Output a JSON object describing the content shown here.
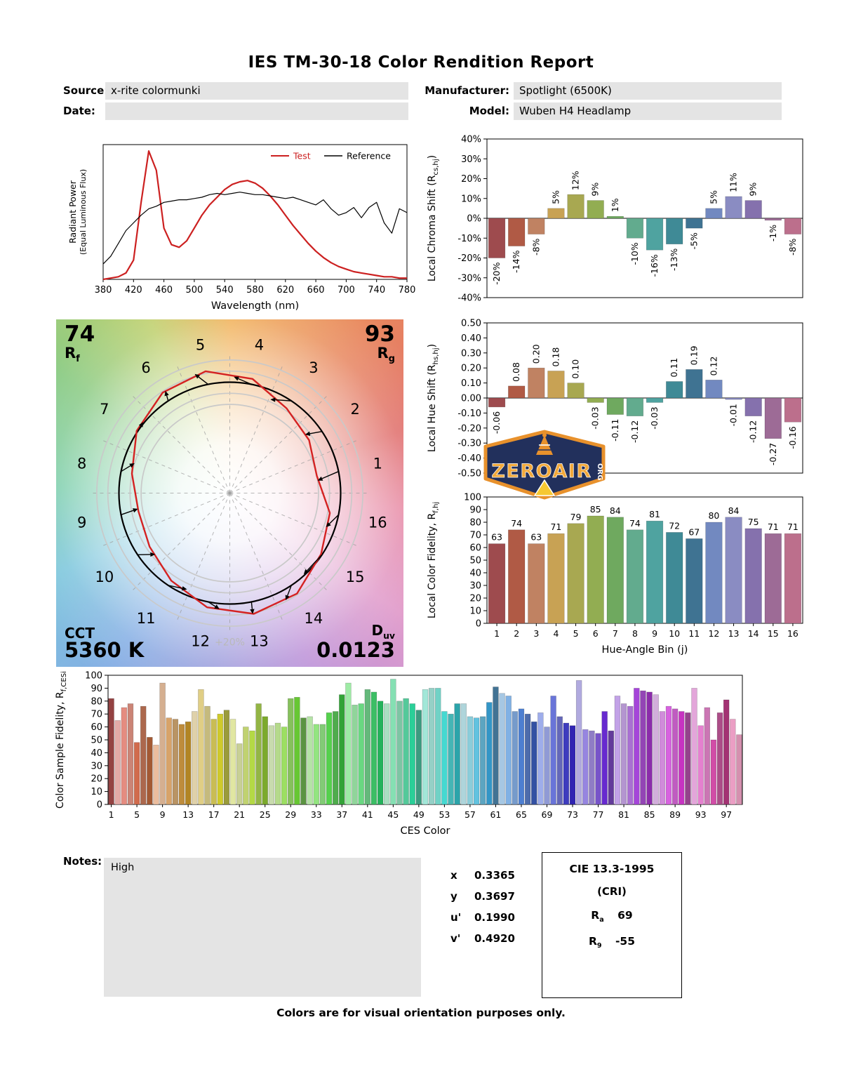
{
  "title": "IES TM-30-18 Color Rendition Report",
  "meta": {
    "source_label": "Source:",
    "source_value": "x-rite colormunki",
    "manufacturer_label": "Manufacturer:",
    "manufacturer_value": "Spotlight (6500K)",
    "date_label": "Date:",
    "date_value": "",
    "model_label": "Model:",
    "model_value": "Wuben H4 Headlamp"
  },
  "colors": {
    "test_curve": "#cc2020",
    "reference_curve": "#000000",
    "field_background": "#e4e4e4",
    "circle_gray": "#c9c9c9",
    "scale_label_gray": "#b9b9b9",
    "logo_navy": "#22305c",
    "logo_orange": "#e8912c",
    "logo_yellow": "#f6c832",
    "hue_bin_colors": [
      "#9e4b4e",
      "#b05a45",
      "#c08262",
      "#c8a254",
      "#a8a851",
      "#92ad52",
      "#6fa95f",
      "#62ab8e",
      "#4fa3a0",
      "#3f8a96",
      "#3f7392",
      "#7289c0",
      "#8a8cc2",
      "#8571ad",
      "#9d6b96",
      "#bc6f8c"
    ]
  },
  "chart_data": [
    {
      "id": "spd",
      "type": "line",
      "title": "Spectral Power Distribution",
      "xlabel": "Wavelength (nm)",
      "ylabel_lines": [
        "Radiant Power",
        "(Equal Luminous Flux)"
      ],
      "xlim": [
        380,
        780
      ],
      "xticks": [
        380,
        420,
        460,
        500,
        540,
        580,
        620,
        660,
        700,
        740,
        780
      ],
      "ylim": [
        0,
        1.05
      ],
      "x_step": 10,
      "legend": [
        {
          "label": "Test",
          "color": "#cc2020"
        },
        {
          "label": "Reference",
          "color": "#000000"
        }
      ],
      "series": [
        {
          "name": "Test",
          "color": "#cc2020",
          "width": 2.2,
          "y": [
            0,
            0.01,
            0.02,
            0.05,
            0.15,
            0.6,
            1,
            0.85,
            0.4,
            0.27,
            0.25,
            0.3,
            0.4,
            0.5,
            0.58,
            0.64,
            0.7,
            0.74,
            0.76,
            0.77,
            0.75,
            0.71,
            0.65,
            0.58,
            0.5,
            0.42,
            0.35,
            0.28,
            0.22,
            0.17,
            0.13,
            0.1,
            0.08,
            0.06,
            0.05,
            0.04,
            0.03,
            0.02,
            0.02,
            0.01,
            0.01
          ]
        },
        {
          "name": "Reference",
          "color": "#000000",
          "width": 1.2,
          "y": [
            0.12,
            0.18,
            0.28,
            0.38,
            0.44,
            0.5,
            0.55,
            0.57,
            0.6,
            0.61,
            0.62,
            0.62,
            0.63,
            0.64,
            0.66,
            0.67,
            0.66,
            0.67,
            0.68,
            0.67,
            0.66,
            0.66,
            0.65,
            0.64,
            0.63,
            0.64,
            0.62,
            0.6,
            0.58,
            0.62,
            0.55,
            0.5,
            0.52,
            0.56,
            0.48,
            0.56,
            0.6,
            0.44,
            0.36,
            0.55,
            0.52
          ]
        }
      ]
    },
    {
      "id": "chroma",
      "type": "bar",
      "ylabel_parts": [
        {
          "t": "Local Chroma Shift (R"
        },
        {
          "t": "cs,hj",
          "sub": true
        },
        {
          "t": ")"
        }
      ],
      "ylim": [
        -40,
        40
      ],
      "ytick_labels": [
        "40%",
        "30%",
        "20%",
        "10%",
        "0%",
        "-10%",
        "-20%",
        "-30%",
        "-40%"
      ],
      "categories": [
        1,
        2,
        3,
        4,
        5,
        6,
        7,
        8,
        9,
        10,
        11,
        12,
        13,
        14,
        15,
        16
      ],
      "values": [
        -20,
        -14,
        -8,
        5,
        12,
        9,
        1,
        -10,
        -16,
        -13,
        -5,
        5,
        11,
        9,
        -1,
        -8
      ],
      "bar_labels": [
        "-20%",
        "-14%",
        "-8%",
        "5%",
        "12%",
        "9%",
        "1%",
        "-10%",
        "-16%",
        "-13%",
        "-5%",
        "5%",
        "11%",
        "9%",
        "-1%",
        "-8%"
      ],
      "label_style": "rotated"
    },
    {
      "id": "hue",
      "type": "bar",
      "ylabel_parts": [
        {
          "t": "Local Hue Shift (R"
        },
        {
          "t": "hs,hj",
          "sub": true
        },
        {
          "t": ")"
        }
      ],
      "ylim": [
        -0.5,
        0.5
      ],
      "ytick_labels": [
        "0.50",
        "0.40",
        "0.30",
        "0.20",
        "0.10",
        "0.00",
        "-0.10",
        "-0.20",
        "-0.30",
        "-0.40",
        "-0.50"
      ],
      "categories": [
        1,
        2,
        3,
        4,
        5,
        6,
        7,
        8,
        9,
        10,
        11,
        12,
        13,
        14,
        15,
        16
      ],
      "values": [
        -0.06,
        0.08,
        0.2,
        0.18,
        0.1,
        -0.03,
        -0.11,
        -0.12,
        -0.03,
        0.11,
        0.19,
        0.12,
        -0.01,
        -0.12,
        -0.27,
        -0.16
      ],
      "bar_labels": [
        "-0.06",
        "0.08",
        "0.20",
        "0.18",
        "0.10",
        "-0.03",
        "-0.11",
        "-0.12",
        "-0.03",
        "0.11",
        "0.19",
        "0.12",
        "-0.01",
        "-0.12",
        "-0.27",
        "-0.16"
      ],
      "label_style": "rotated"
    },
    {
      "id": "localfid",
      "type": "bar",
      "xlabel": "Hue-Angle Bin (j)",
      "ylabel_parts": [
        {
          "t": "Local Color Fidelity, R"
        },
        {
          "t": "f,hj",
          "sub": true
        }
      ],
      "ylim": [
        0,
        100
      ],
      "ytick_labels": [
        "100",
        "90",
        "80",
        "70",
        "60",
        "50",
        "40",
        "30",
        "20",
        "10",
        "0"
      ],
      "xtick_labels": [
        "1",
        "2",
        "3",
        "4",
        "5",
        "6",
        "7",
        "8",
        "9",
        "10",
        "11",
        "12",
        "13",
        "14",
        "15",
        "16"
      ],
      "xtick_every": 1,
      "categories": [
        1,
        2,
        3,
        4,
        5,
        6,
        7,
        8,
        9,
        10,
        11,
        12,
        13,
        14,
        15,
        16
      ],
      "values": [
        63,
        74,
        63,
        71,
        79,
        85,
        84,
        74,
        81,
        72,
        67,
        80,
        84,
        75,
        71,
        71
      ],
      "bar_labels": [
        "63",
        "74",
        "63",
        "71",
        "79",
        "85",
        "84",
        "74",
        "81",
        "72",
        "67",
        "80",
        "84",
        "75",
        "71",
        "71"
      ],
      "label_style": "top"
    },
    {
      "id": "ces",
      "type": "bar",
      "xlabel": "CES Color",
      "ylabel_parts": [
        {
          "t": "Color Sample Fidelity, R"
        },
        {
          "t": "f,CESi",
          "sub": true
        }
      ],
      "ylim": [
        0,
        100
      ],
      "ytick_labels": [
        "100",
        "90",
        "80",
        "70",
        "60",
        "50",
        "40",
        "30",
        "20",
        "10",
        "0"
      ],
      "xtick_labels": [
        "1",
        "5",
        "9",
        "13",
        "17",
        "21",
        "25",
        "29",
        "33",
        "37",
        "41",
        "45",
        "49",
        "53",
        "57",
        "61",
        "65",
        "69",
        "73",
        "77",
        "81",
        "85",
        "89",
        "93",
        "97"
      ],
      "xtick_every": 4,
      "values": [
        82,
        65,
        75,
        78,
        48,
        76,
        52,
        46,
        94,
        67,
        66,
        62,
        64,
        72,
        89,
        76,
        66,
        70,
        73,
        66,
        47,
        60,
        57,
        78,
        68,
        61,
        63,
        60,
        82,
        83,
        67,
        68,
        62,
        62,
        71,
        72,
        85,
        94,
        77,
        78,
        89,
        87,
        80,
        78,
        97,
        80,
        82,
        78,
        73,
        89,
        90,
        90,
        72,
        70,
        78,
        78,
        68,
        67,
        68,
        79,
        91,
        86,
        84,
        72,
        74,
        70,
        64,
        71,
        60,
        84,
        68,
        63,
        61,
        96,
        58,
        57,
        55,
        72,
        57,
        84,
        78,
        76,
        90,
        88,
        87,
        85,
        72,
        76,
        74,
        72,
        71,
        90,
        61,
        75,
        50,
        71,
        81,
        66,
        54
      ],
      "label_style": "none"
    }
  ],
  "cvg": {
    "rf_value": "74",
    "rf_symbol": "R",
    "rf_sub": "f",
    "rg_value": "93",
    "rg_symbol": "R",
    "rg_sub": "g",
    "cct_label": "CCT",
    "cct_value": "5360 K",
    "duv_symbol": "D",
    "duv_sub": "uv",
    "duv_value": "0.0123",
    "scale_label": "+20%",
    "bin_labels": [
      "1",
      "2",
      "3",
      "4",
      "5",
      "6",
      "7",
      "8",
      "9",
      "10",
      "11",
      "12",
      "13",
      "14",
      "15",
      "16"
    ]
  },
  "logo": {
    "text": "ZEROAIR",
    "suffix": "ORG"
  },
  "notes": {
    "label": "Notes:",
    "text": "High"
  },
  "chromaticity": {
    "rows": [
      {
        "label": "x",
        "value": "0.3365"
      },
      {
        "label": "y",
        "value": "0.3697"
      },
      {
        "label": "u'",
        "value": "0.1990"
      },
      {
        "label": "v'",
        "value": "0.4920"
      }
    ]
  },
  "cri": {
    "title": "CIE 13.3-1995",
    "subtitle": "(CRI)",
    "ra_symbol": "R",
    "ra_sub": "a",
    "ra_value": "69",
    "r9_symbol": "R",
    "r9_sub": "9",
    "r9_value": "-55"
  },
  "footer": "Colors are for visual orientation purposes only."
}
